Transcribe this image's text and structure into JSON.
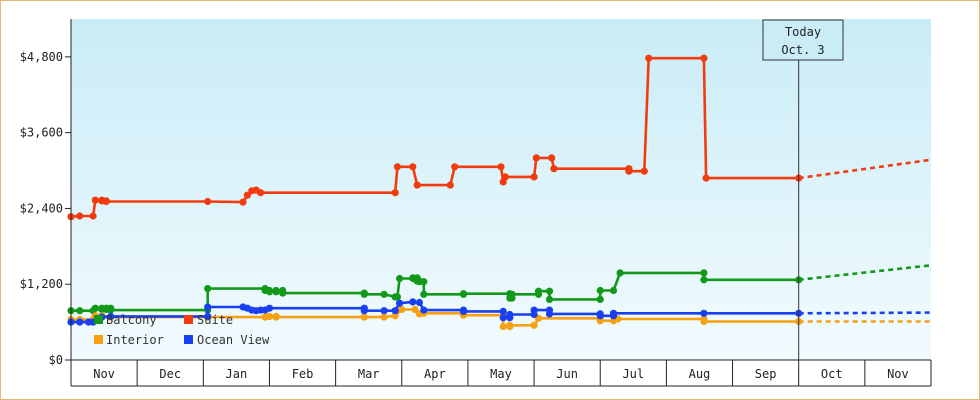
{
  "chart_data": {
    "type": "line",
    "title": "",
    "xlabel": "",
    "ylabel": "",
    "ylim": [
      0,
      5400
    ],
    "y_ticks": [
      "$0",
      "$1,200",
      "$2,400",
      "$3,600",
      "$4,800"
    ],
    "y_tick_values": [
      0,
      1200,
      2400,
      3600,
      4800
    ],
    "months": [
      "Nov",
      "Dec",
      "Jan",
      "Feb",
      "Mar",
      "Apr",
      "May",
      "Jun",
      "Jul",
      "Aug",
      "Sep",
      "Oct",
      "Nov"
    ],
    "x_range_days": [
      0,
      390
    ],
    "today_marker": {
      "line1": "Today",
      "line2": "Oct. 3",
      "day": 330
    },
    "grid": false,
    "legend_position": "bottom-left",
    "colors": {
      "plot_bg_top": "#c9ecf7",
      "plot_bg_bottom": "#f2fbfe",
      "frame_border": "#e8b878"
    },
    "series": [
      {
        "name": "Balcony",
        "color": "#13991a",
        "points": [
          [
            0,
            780
          ],
          [
            4,
            780
          ],
          [
            10,
            780
          ],
          [
            11,
            820
          ],
          [
            14,
            820
          ],
          [
            14,
            800
          ],
          [
            16,
            800
          ],
          [
            16,
            820
          ],
          [
            18,
            820
          ],
          [
            18,
            790
          ],
          [
            62,
            790
          ],
          [
            62,
            1130
          ],
          [
            88,
            1130
          ],
          [
            88,
            1100
          ],
          [
            90,
            1100
          ],
          [
            90,
            1080
          ],
          [
            93,
            1080
          ],
          [
            93,
            1100
          ],
          [
            96,
            1100
          ],
          [
            96,
            1060
          ],
          [
            133,
            1060
          ],
          [
            133,
            1040
          ],
          [
            142,
            1040
          ],
          [
            147,
            1000
          ],
          [
            148,
            1000
          ],
          [
            149,
            1290
          ],
          [
            155,
            1290
          ],
          [
            155,
            1300
          ],
          [
            157,
            1300
          ],
          [
            157,
            1250
          ],
          [
            158,
            1250
          ],
          [
            158,
            1240
          ],
          [
            160,
            1240
          ],
          [
            160,
            1040
          ],
          [
            178,
            1040
          ],
          [
            178,
            1050
          ],
          [
            199,
            1050
          ],
          [
            199,
            980
          ],
          [
            200,
            980
          ],
          [
            200,
            1040
          ],
          [
            212,
            1040
          ],
          [
            212,
            1090
          ],
          [
            217,
            1090
          ],
          [
            217,
            960
          ],
          [
            240,
            960
          ],
          [
            240,
            1100
          ],
          [
            246,
            1100
          ],
          [
            249,
            1380
          ],
          [
            287,
            1380
          ],
          [
            287,
            1270
          ],
          [
            330,
            1270
          ]
        ],
        "projection": [
          [
            330,
            1270
          ],
          [
            390,
            1500
          ]
        ]
      },
      {
        "name": "Suite",
        "color": "#f23c0f",
        "points": [
          [
            0,
            2270
          ],
          [
            4,
            2280
          ],
          [
            10,
            2280
          ],
          [
            11,
            2530
          ],
          [
            14,
            2530
          ],
          [
            14,
            2520
          ],
          [
            16,
            2520
          ],
          [
            16,
            2510
          ],
          [
            62,
            2510
          ],
          [
            78,
            2500
          ],
          [
            80,
            2610
          ],
          [
            82,
            2680
          ],
          [
            84,
            2690
          ],
          [
            86,
            2650
          ],
          [
            147,
            2650
          ],
          [
            148,
            3060
          ],
          [
            155,
            3060
          ],
          [
            157,
            2770
          ],
          [
            172,
            2770
          ],
          [
            174,
            3060
          ],
          [
            195,
            3060
          ],
          [
            196,
            2820
          ],
          [
            197,
            2900
          ],
          [
            210,
            2900
          ],
          [
            211,
            3200
          ],
          [
            218,
            3200
          ],
          [
            219,
            3030
          ],
          [
            253,
            3030
          ],
          [
            253,
            2990
          ],
          [
            260,
            2990
          ],
          [
            262,
            4780
          ],
          [
            287,
            4780
          ],
          [
            288,
            2880
          ],
          [
            330,
            2880
          ]
        ],
        "projection": [
          [
            330,
            2880
          ],
          [
            390,
            3170
          ]
        ]
      },
      {
        "name": "Interior",
        "color": "#f6a012",
        "points": [
          [
            0,
            640
          ],
          [
            4,
            640
          ],
          [
            10,
            640
          ],
          [
            11,
            700
          ],
          [
            14,
            700
          ],
          [
            14,
            680
          ],
          [
            18,
            680
          ],
          [
            62,
            680
          ],
          [
            88,
            680
          ],
          [
            90,
            690
          ],
          [
            93,
            690
          ],
          [
            93,
            680
          ],
          [
            133,
            680
          ],
          [
            142,
            680
          ],
          [
            147,
            700
          ],
          [
            150,
            800
          ],
          [
            156,
            800
          ],
          [
            158,
            730
          ],
          [
            160,
            740
          ],
          [
            178,
            740
          ],
          [
            178,
            710
          ],
          [
            196,
            710
          ],
          [
            196,
            530
          ],
          [
            199,
            530
          ],
          [
            199,
            550
          ],
          [
            210,
            550
          ],
          [
            212,
            660
          ],
          [
            240,
            660
          ],
          [
            240,
            620
          ],
          [
            246,
            620
          ],
          [
            248,
            650
          ],
          [
            287,
            650
          ],
          [
            287,
            610
          ],
          [
            330,
            610
          ]
        ],
        "projection": [
          [
            330,
            610
          ],
          [
            390,
            610
          ]
        ]
      },
      {
        "name": "Ocean View",
        "color": "#1940f0",
        "points": [
          [
            0,
            600
          ],
          [
            4,
            600
          ],
          [
            8,
            600
          ],
          [
            10,
            600
          ],
          [
            14,
            680
          ],
          [
            18,
            690
          ],
          [
            62,
            690
          ],
          [
            62,
            840
          ],
          [
            78,
            840
          ],
          [
            80,
            820
          ],
          [
            82,
            790
          ],
          [
            84,
            780
          ],
          [
            86,
            790
          ],
          [
            88,
            790
          ],
          [
            90,
            820
          ],
          [
            133,
            820
          ],
          [
            133,
            780
          ],
          [
            142,
            780
          ],
          [
            147,
            780
          ],
          [
            149,
            900
          ],
          [
            155,
            920
          ],
          [
            158,
            910
          ],
          [
            160,
            790
          ],
          [
            178,
            790
          ],
          [
            178,
            770
          ],
          [
            196,
            770
          ],
          [
            196,
            670
          ],
          [
            199,
            670
          ],
          [
            199,
            720
          ],
          [
            210,
            720
          ],
          [
            210,
            790
          ],
          [
            217,
            790
          ],
          [
            217,
            730
          ],
          [
            240,
            730
          ],
          [
            240,
            700
          ],
          [
            246,
            700
          ],
          [
            246,
            740
          ],
          [
            287,
            740
          ],
          [
            330,
            740
          ]
        ],
        "projection": [
          [
            330,
            740
          ],
          [
            390,
            750
          ]
        ]
      }
    ]
  }
}
